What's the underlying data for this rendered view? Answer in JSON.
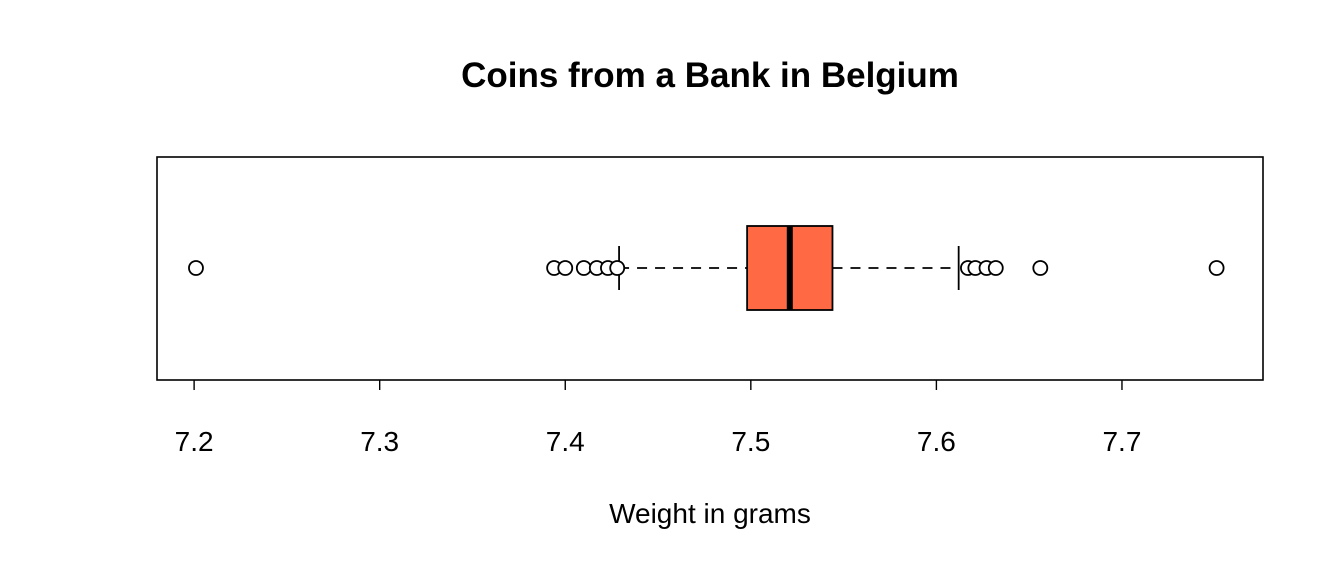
{
  "chart_data": {
    "type": "boxplot",
    "orientation": "horizontal",
    "title": "Coins from a Bank in Belgium",
    "xlabel": "Weight in grams",
    "ylabel": "",
    "xlim": [
      7.18,
      7.776
    ],
    "x_ticks": [
      7.2,
      7.3,
      7.4,
      7.5,
      7.6,
      7.7
    ],
    "x_tick_labels": [
      "7.2",
      "7.3",
      "7.4",
      "7.5",
      "7.6",
      "7.7"
    ],
    "box": {
      "q1": 7.498,
      "median": 7.521,
      "q3": 7.544,
      "whisker_low": 7.429,
      "whisker_high": 7.612
    },
    "outliers": [
      7.201,
      7.394,
      7.4,
      7.41,
      7.417,
      7.423,
      7.428,
      7.617,
      7.621,
      7.627,
      7.632,
      7.656,
      7.751
    ],
    "fill_color": "#FF6A45",
    "grid": false,
    "legend": "none"
  }
}
